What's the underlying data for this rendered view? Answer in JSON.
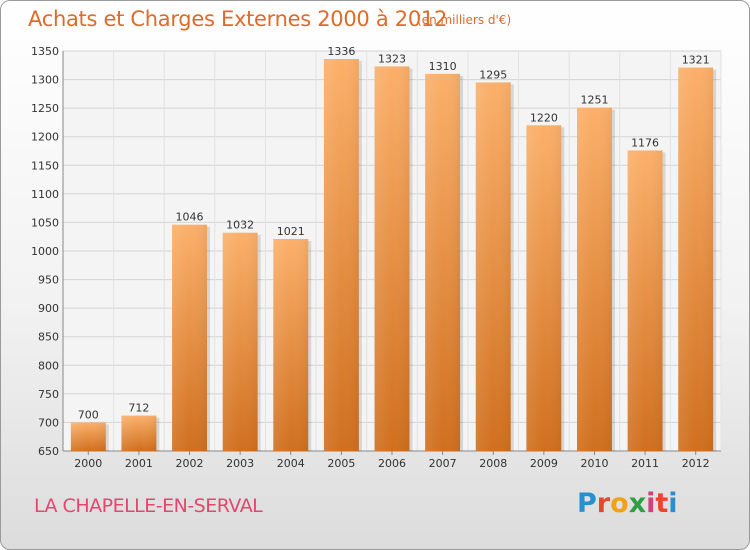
{
  "title": "Achats et Charges Externes 2000 à 2012",
  "subtitle": "(en milliers d'€)",
  "commune": "LA CHAPELLE-EN-SERVAL",
  "logo": {
    "l1": "P",
    "l2": "r",
    "l3": "o",
    "l4": "x",
    "l5": "i",
    "l6": "t",
    "l7": "i"
  },
  "colors": {
    "bar_light": "#fbb06a",
    "bar_dark": "#d06f1e",
    "title": "#e06a2a",
    "commune": "#e5466e"
  },
  "chart_data": {
    "type": "bar",
    "title": "Achats et Charges Externes 2000 à 2012",
    "subtitle": "(en milliers d'€)",
    "categories": [
      "2000",
      "2001",
      "2002",
      "2003",
      "2004",
      "2005",
      "2006",
      "2007",
      "2008",
      "2009",
      "2010",
      "2011",
      "2012"
    ],
    "values": [
      700,
      712,
      1046,
      1032,
      1021,
      1336,
      1323,
      1310,
      1295,
      1220,
      1251,
      1176,
      1321
    ],
    "ylim": [
      650,
      1350
    ],
    "yticks": [
      650,
      700,
      750,
      800,
      850,
      900,
      950,
      1000,
      1050,
      1100,
      1150,
      1200,
      1250,
      1300,
      1350
    ],
    "grid": true,
    "legend": "none"
  }
}
